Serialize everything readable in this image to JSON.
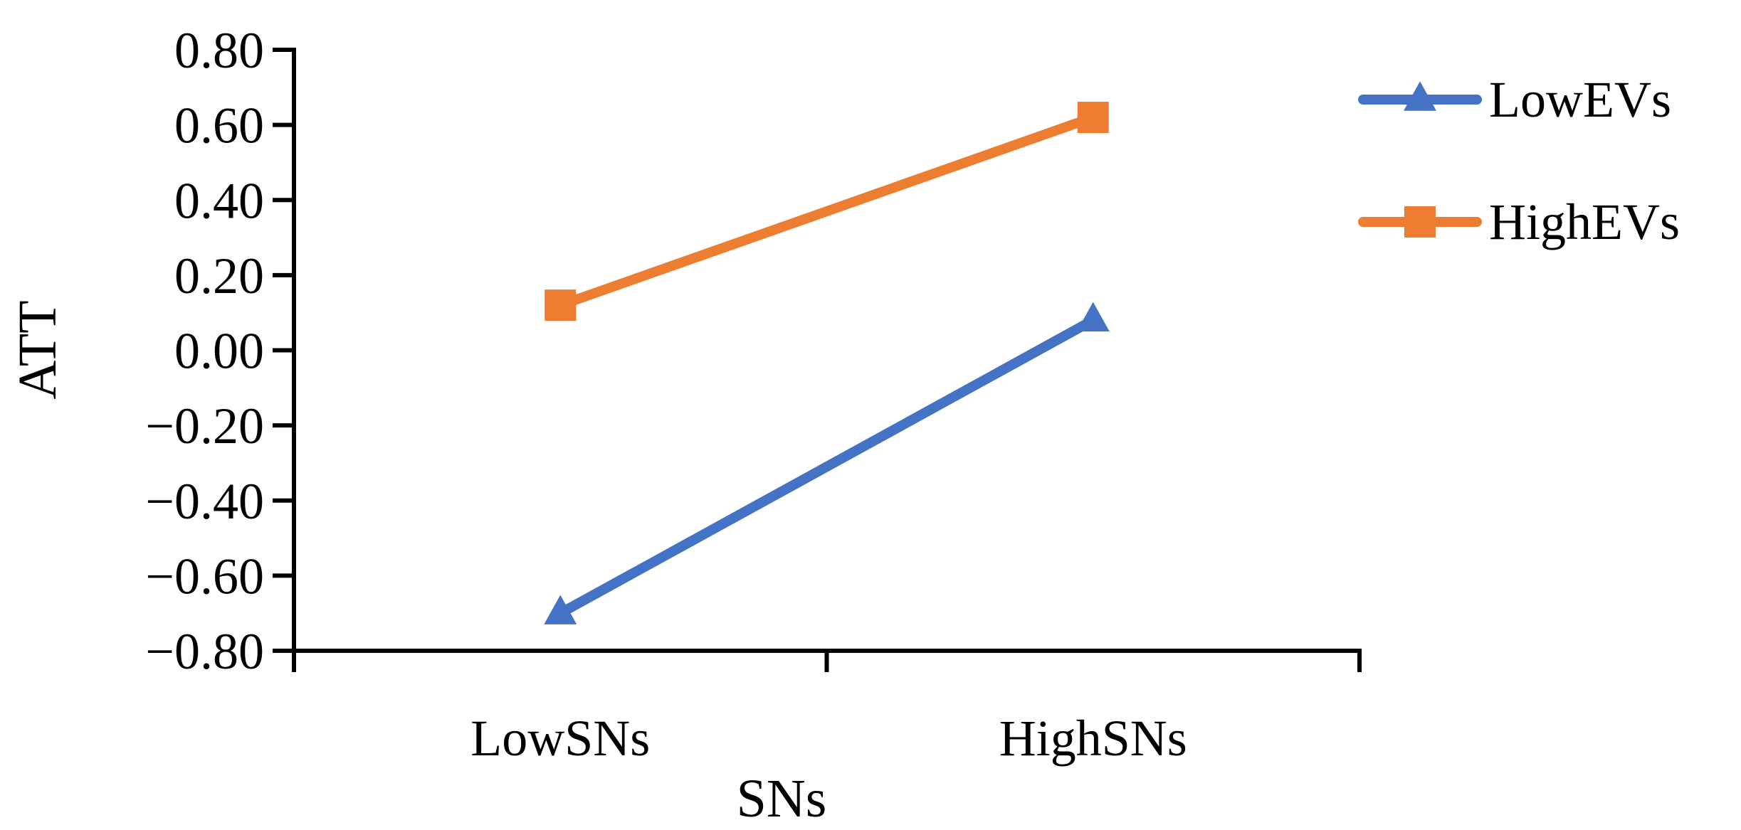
{
  "chart_data": {
    "type": "line",
    "categories": [
      "LowSNs",
      "HighSNs"
    ],
    "series": [
      {
        "name": "LowEVs",
        "values": [
          -0.7,
          0.08
        ],
        "color": "#4472C4",
        "marker": "triangle"
      },
      {
        "name": "HighEVs",
        "values": [
          0.12,
          0.62
        ],
        "color": "#ED7D31",
        "marker": "square"
      }
    ],
    "title": "",
    "xlabel": "SNs",
    "ylabel": "ATT",
    "ylim": [
      -0.8,
      0.8
    ],
    "yticks": [
      "0.80",
      "0.60",
      "0.40",
      "0.20",
      "0.00",
      "−0.20",
      "−0.40",
      "−0.60",
      "−0.80"
    ],
    "grid": false,
    "legend_position": "top-right"
  }
}
